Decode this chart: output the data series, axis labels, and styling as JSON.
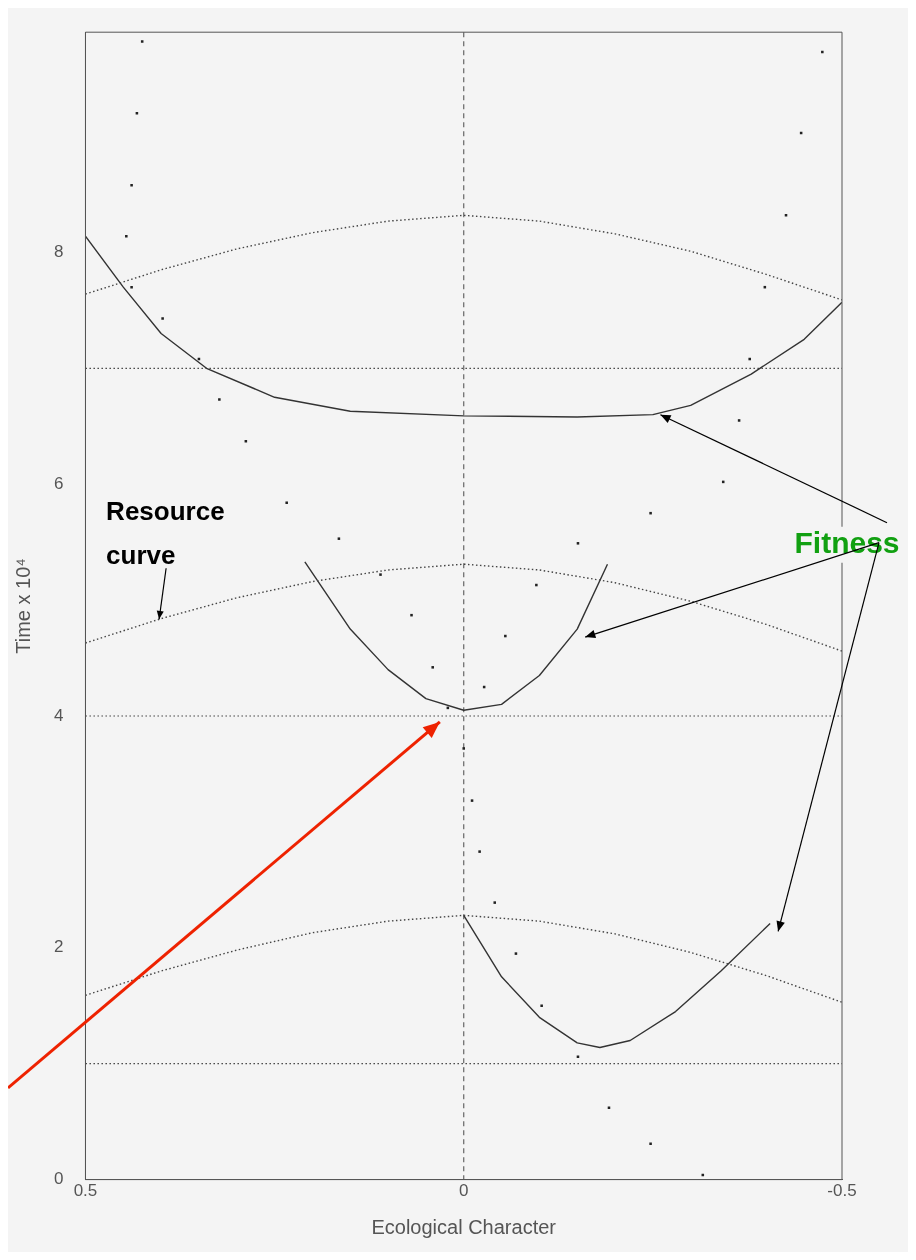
{
  "chart_data": {
    "type": "line",
    "xlabel": "Ecological Character",
    "ylabel": "Time x 10⁴",
    "xlim": [
      0.5,
      -0.5
    ],
    "xticks": [
      0.5,
      0,
      -0.5
    ],
    "ylim": [
      0,
      9.9
    ],
    "yticks": [
      0,
      2,
      4,
      6,
      8
    ],
    "grid": false,
    "legend": false,
    "series": [
      {
        "type": "line",
        "line_style": "dotted",
        "marker": "none",
        "color": "#444444",
        "x": [
          0.5,
          0.4,
          0.3,
          0.2,
          0.1,
          0,
          -0.1,
          -0.2,
          -0.3,
          -0.4,
          -0.5
        ],
        "values": [
          7.64,
          7.85,
          8.03,
          8.17,
          8.27,
          8.32,
          8.27,
          8.16,
          8.01,
          7.81,
          7.59
        ]
      },
      {
        "type": "line",
        "line_style": "dotted",
        "marker": "none",
        "color": "#444444",
        "x": [
          0.5,
          0.4,
          0.3,
          0.2,
          0.1,
          0,
          -0.1,
          -0.2,
          -0.3,
          -0.4,
          -0.5
        ],
        "values": [
          4.63,
          4.84,
          5.02,
          5.16,
          5.26,
          5.31,
          5.26,
          5.15,
          4.99,
          4.79,
          4.56
        ]
      },
      {
        "type": "line",
        "line_style": "dotted",
        "marker": "none",
        "color": "#444444",
        "x": [
          0.5,
          0.4,
          0.3,
          0.2,
          0.1,
          0,
          -0.1,
          -0.2,
          -0.3,
          -0.4,
          -0.5
        ],
        "values": [
          1.59,
          1.8,
          1.98,
          2.13,
          2.23,
          2.28,
          2.23,
          2.12,
          1.96,
          1.76,
          1.53
        ]
      },
      {
        "type": "line",
        "line_style": "solid",
        "marker": "none",
        "color": "#333333",
        "x": [
          0.5,
          0.45,
          0.4,
          0.34,
          0.25,
          0.15,
          0,
          -0.15,
          -0.25,
          -0.3,
          -0.38,
          -0.45,
          -0.5
        ],
        "values": [
          8.14,
          7.7,
          7.3,
          7.0,
          6.75,
          6.63,
          6.59,
          6.58,
          6.6,
          6.68,
          6.95,
          7.25,
          7.57
        ]
      },
      {
        "type": "line",
        "line_style": "solid",
        "marker": "none",
        "color": "#333333",
        "x": [
          0.21,
          0.15,
          0.1,
          0.05,
          0,
          -0.05,
          -0.1,
          -0.15,
          -0.19
        ],
        "values": [
          5.33,
          4.75,
          4.4,
          4.15,
          4.05,
          4.1,
          4.35,
          4.75,
          5.31
        ]
      },
      {
        "type": "line",
        "line_style": "solid",
        "marker": "none",
        "color": "#333333",
        "x": [
          0,
          -0.05,
          -0.1,
          -0.15,
          -0.18,
          -0.22,
          -0.28,
          -0.34,
          -0.405
        ],
        "values": [
          2.28,
          1.75,
          1.4,
          1.18,
          1.14,
          1.2,
          1.45,
          1.8,
          2.21
        ]
      },
      {
        "type": "scatter",
        "marker": "square",
        "color": "#222222",
        "x": [
          -0.316,
          -0.247,
          -0.192,
          -0.151,
          -0.103,
          -0.069,
          -0.041,
          -0.021,
          -0.011,
          0,
          0.021,
          0.041,
          0.069,
          0.11,
          0.165,
          0.234,
          0.288,
          0.323,
          0.35,
          0.398,
          0.439,
          0.446,
          0.439,
          0.432,
          0.425,
          -0.027,
          -0.055,
          -0.096,
          -0.151,
          -0.247,
          -0.343,
          -0.364,
          -0.378,
          -0.398,
          -0.426,
          -0.446,
          -0.474
        ],
        "values": [
          0.04,
          0.31,
          0.62,
          1.06,
          1.5,
          1.95,
          2.39,
          2.83,
          3.27,
          3.72,
          4.07,
          4.42,
          4.87,
          5.22,
          5.53,
          5.84,
          6.37,
          6.73,
          7.08,
          7.43,
          7.7,
          8.14,
          8.58,
          9.2,
          9.82,
          4.25,
          4.69,
          5.13,
          5.49,
          5.75,
          6.02,
          6.55,
          7.08,
          7.7,
          8.32,
          9.03,
          9.73
        ]
      }
    ],
    "ref_lines": [
      {
        "axis": "x",
        "value": 0,
        "line_style": "dashed",
        "color": "#666666"
      },
      {
        "axis": "y",
        "value": 7,
        "line_style": "dotted",
        "color": "#444444"
      },
      {
        "axis": "y",
        "value": 4,
        "line_style": "dotted",
        "color": "#444444"
      },
      {
        "axis": "y",
        "value": 1,
        "line_style": "dotted",
        "color": "#444444"
      }
    ],
    "annotations": [
      {
        "text": "Resource curve",
        "x": 0.4,
        "y": 4.8
      },
      {
        "text": "Fitness",
        "x": -0.26,
        "y": 6.6
      }
    ]
  }
}
